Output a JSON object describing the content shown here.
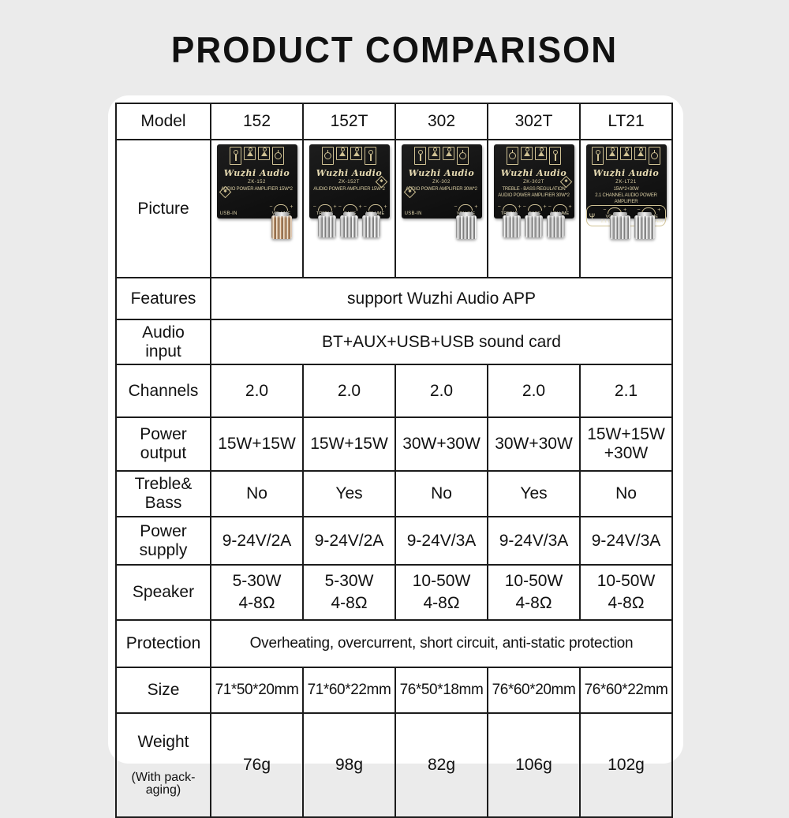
{
  "page": {
    "title": "PRODUCT COMPARISON"
  },
  "colors": {
    "background": "#ebebeb",
    "card": "#ffffff",
    "table_border": "#1c1c1c",
    "board_black": "#141414",
    "board_gold": "#d5c79b",
    "knob_silver": "#c8c8c8"
  },
  "table": {
    "labels": {
      "model": "Model",
      "picture": "Picture",
      "features": "Features",
      "audio_input": "Audio\ninput",
      "channels": "Channels",
      "power_output": "Power\noutput",
      "treble_bass": "Treble&\nBass",
      "power_supply": "Power\nsupply",
      "speaker": "Speaker",
      "protection": "Protection",
      "size": "Size",
      "weight": "Weight",
      "weight_sub": "(With pack-\naging)"
    },
    "models": [
      "152",
      "152T",
      "302",
      "302T",
      "LT21"
    ],
    "features": "support Wuzhi Audio APP",
    "audio_input": "BT+AUX+USB+USB sound card",
    "channels": [
      "2.0",
      "2.0",
      "2.0",
      "2.0",
      "2.1"
    ],
    "power_output": [
      "15W+15W",
      "15W+15W",
      "30W+30W",
      "30W+30W",
      "15W+15W\n+30W"
    ],
    "treble_bass": [
      "No",
      "Yes",
      "No",
      "Yes",
      "No"
    ],
    "power_supply": [
      "9-24V/2A",
      "9-24V/2A",
      "9-24V/3A",
      "9-24V/3A",
      "9-24V/3A"
    ],
    "speaker": [
      "5-30W\n4-8Ω",
      "5-30W\n4-8Ω",
      "10-50W\n4-8Ω",
      "10-50W\n4-8Ω",
      "10-50W\n4-8Ω"
    ],
    "protection": "Overheating, overcurrent, short circuit, anti-static protection",
    "size": [
      "71*50*20mm",
      "71*60*22mm",
      "76*50*18mm",
      "76*60*20mm",
      "76*60*22mm"
    ],
    "weight": [
      "76g",
      "98g",
      "82g",
      "106g",
      "102g"
    ]
  },
  "products": [
    {
      "logo": "Wuzhi Audio",
      "board_model": "ZK-152",
      "board_desc": "AUDIO POWER AMPLIFIER 15W*2",
      "bottom_left": "USB-IN",
      "knob_labels": [
        "VOLUME"
      ]
    },
    {
      "logo": "Wuzhi Audio",
      "board_model": "ZK-152T",
      "board_desc": "AUDIO POWER AMPLIFIER 15W*2",
      "knob_labels": [
        "TREBLE",
        "BASS",
        "VOLUME"
      ]
    },
    {
      "logo": "Wuzhi Audio",
      "board_model": "ZK-302",
      "board_desc": "AUDIO POWER AMPLIFIER 30W*2",
      "bottom_left": "USB-IN",
      "knob_labels": [
        "VOLUME"
      ]
    },
    {
      "logo": "Wuzhi Audio",
      "board_model": "ZK-302T",
      "board_desc": "TREBLE - BASS REGULATION\nAUDIO POWER AMPLIFIER 30W*2",
      "knob_labels": [
        "TREBLE",
        "BASS",
        "VOLUME"
      ]
    },
    {
      "logo": "Wuzhi Audio",
      "board_model": "ZK-LT21",
      "board_desc": "15W*2+30W\n2.1 CHANNEL AUDIO POWER AMPLIFIER",
      "knob_labels": [
        "VOLUME\n2.1 CHANNEL",
        "VOLUME\nSUBWOOFER"
      ]
    }
  ],
  "icons": {
    "usb_glyph": "Ψ"
  }
}
